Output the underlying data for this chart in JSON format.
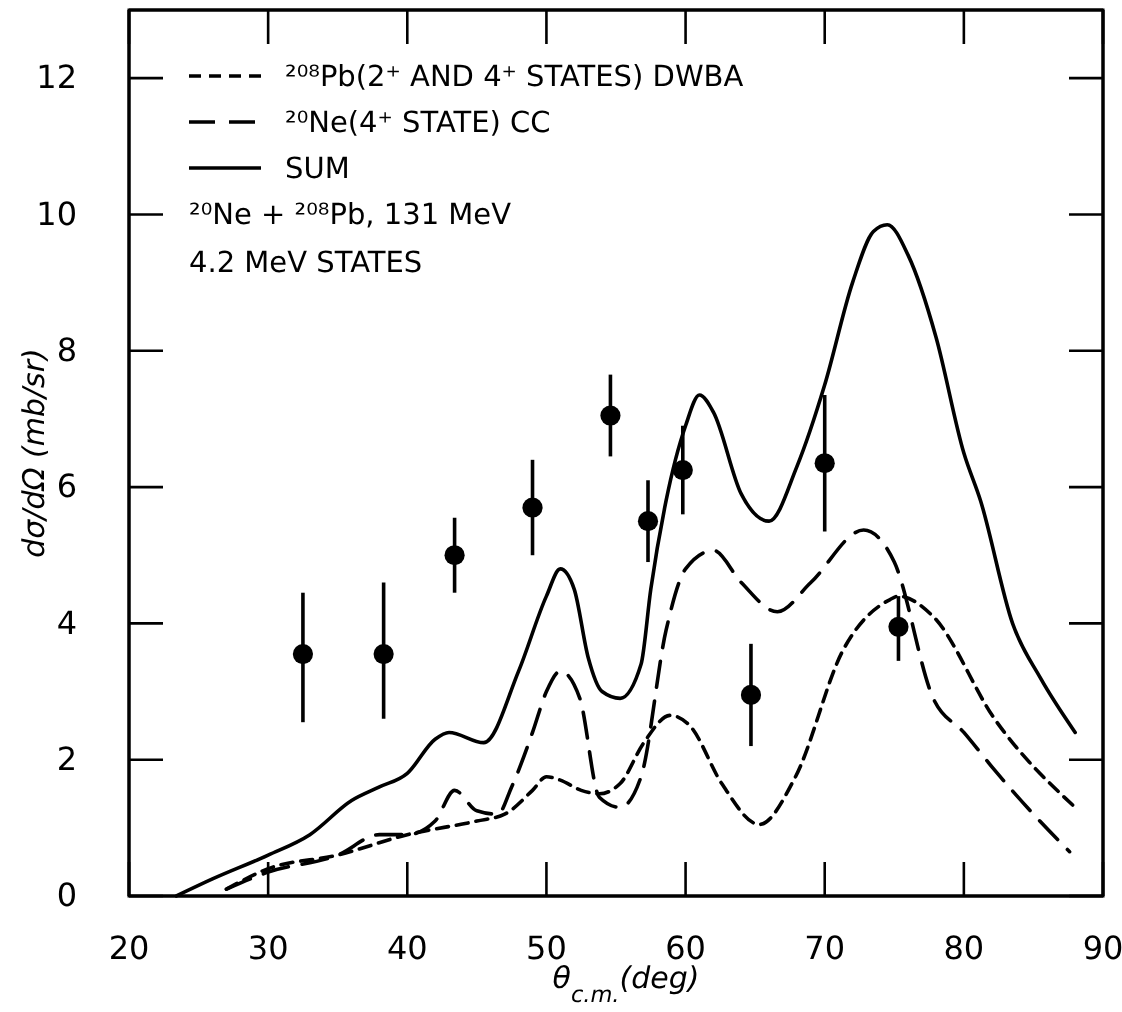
{
  "chart_data": {
    "type": "line",
    "xlabel": "θ$_{c.m.}$(deg)",
    "ylabel": "dσ/dΩ (mb/sr)",
    "xlim": [
      20,
      90
    ],
    "ylim": [
      0,
      13
    ],
    "xticks": [
      20,
      30,
      40,
      50,
      60,
      70,
      80,
      90
    ],
    "yticks": [
      0,
      2,
      4,
      6,
      8,
      10,
      12
    ],
    "legend": "top left",
    "grid": false,
    "annotations": [
      "²⁰Ne + ²⁰⁸Pb, 131 MeV",
      "4.2 MeV STATES"
    ],
    "series": [
      {
        "name": "²⁰⁸Pb(2⁺ AND 4⁺ STATES) DWBA",
        "color": "#000000",
        "line_style": "dotted",
        "marker": "none",
        "x": [
          27,
          30,
          35,
          40,
          45,
          47,
          49,
          50,
          51,
          52.5,
          53.8,
          55.3,
          57,
          58.9,
          60.3,
          62.6,
          65.3,
          67.9,
          71.3,
          74.7,
          75.3,
          77.8,
          82.2,
          88
        ],
        "values": [
          0.1,
          0.4,
          0.6,
          0.9,
          1.1,
          1.2,
          1.55,
          1.75,
          1.7,
          1.55,
          1.5,
          1.65,
          2.25,
          2.65,
          2.5,
          1.65,
          1.05,
          1.75,
          3.6,
          4.35,
          4.4,
          4.1,
          2.6,
          1.3
        ]
      },
      {
        "name": "²⁰Ne(4⁺ STATE) CC",
        "color": "#000000",
        "line_style": "dashed",
        "marker": "none",
        "x": [
          27,
          30,
          35,
          38,
          40,
          42,
          43.4,
          45,
          46.5,
          47.5,
          49,
          50,
          51,
          52.4,
          53.8,
          55.3,
          56.8,
          58.6,
          60,
          62,
          64,
          66.6,
          69,
          72.8,
          75,
          77.8,
          80,
          82.2,
          85,
          87.6
        ],
        "values": [
          0.1,
          0.35,
          0.6,
          0.9,
          0.9,
          1.1,
          1.55,
          1.25,
          1.2,
          1.6,
          2.4,
          3.0,
          3.3,
          2.9,
          1.45,
          1.3,
          1.75,
          3.9,
          4.8,
          5.07,
          4.6,
          4.17,
          4.6,
          5.37,
          4.9,
          2.9,
          2.4,
          1.85,
          1.2,
          0.65
        ]
      },
      {
        "name": "SUM",
        "color": "#000000",
        "line_style": "solid",
        "marker": "none",
        "x": [
          23.4,
          26,
          30,
          33,
          36,
          38,
          40,
          42,
          43,
          45.5,
          48,
          50,
          51,
          52,
          53,
          54,
          55.3,
          56.8,
          57.5,
          58.6,
          60,
          61,
          62,
          64,
          66,
          68,
          70,
          72,
          73.5,
          74.5,
          76,
          78,
          80,
          81.2,
          83.5,
          85.5,
          88
        ],
        "values": [
          0,
          0.25,
          0.6,
          0.9,
          1.4,
          1.6,
          1.8,
          2.3,
          2.4,
          2.25,
          3.3,
          4.4,
          4.8,
          4.5,
          3.5,
          3.0,
          2.9,
          3.4,
          4.5,
          5.8,
          6.9,
          7.35,
          7.1,
          5.9,
          5.5,
          6.3,
          7.5,
          9.0,
          9.75,
          9.85,
          9.4,
          8.2,
          6.5,
          5.8,
          4.0,
          3.2,
          2.4
        ]
      },
      {
        "type": "scatter",
        "color": "#000000",
        "marker": "circle",
        "x": [
          32.5,
          38.3,
          43.4,
          49.0,
          54.6,
          57.3,
          59.8,
          64.7,
          70.0,
          75.3
        ],
        "values": [
          3.55,
          3.55,
          5.0,
          5.7,
          7.05,
          5.5,
          6.25,
          2.95,
          6.35,
          3.95
        ],
        "errors": [
          [
            2.55,
            4.45
          ],
          [
            2.6,
            4.6
          ],
          [
            4.45,
            5.55
          ],
          [
            5.0,
            6.4
          ],
          [
            6.45,
            7.65
          ],
          [
            4.9,
            6.1
          ],
          [
            5.6,
            6.9
          ],
          [
            2.2,
            3.7
          ],
          [
            5.35,
            7.35
          ],
          [
            3.45,
            4.4
          ]
        ]
      }
    ]
  }
}
